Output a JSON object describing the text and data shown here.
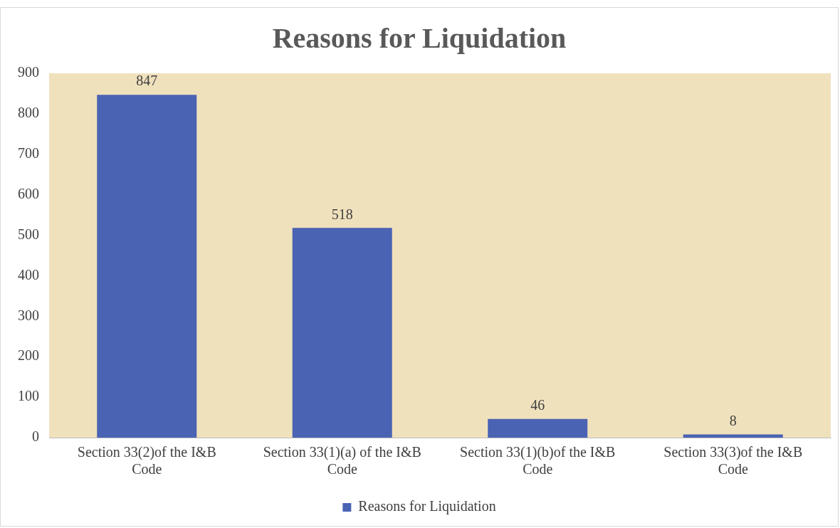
{
  "chart_data": {
    "type": "bar",
    "title": "Reasons for Liquidation",
    "categories": [
      "Section 33(2)of the I&B Code",
      "Section 33(1)(a) of the I&B Code",
      "Section 33(1)(b)of the I&B Code",
      "Section 33(3)of the I&B Code"
    ],
    "series": [
      {
        "name": "Reasons for Liquidation",
        "color": "#4a63b3",
        "values": [
          847,
          518,
          46,
          8
        ]
      }
    ],
    "ylim": [
      0,
      900
    ],
    "yticks": [
      0,
      100,
      200,
      300,
      400,
      500,
      600,
      700,
      800,
      900
    ],
    "grid": false,
    "legend": "bottom",
    "data_labels": true
  }
}
